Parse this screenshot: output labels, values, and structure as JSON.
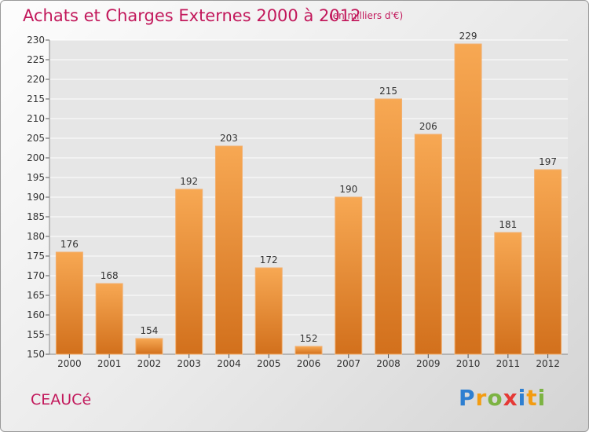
{
  "header": {
    "title": "Achats et Charges Externes 2000 à 2012",
    "unit": "(en milliers d'€)"
  },
  "footer": {
    "commune": "CEAUCé",
    "logo_text": "Proxiti",
    "logo_letters": [
      {
        "ch": "P",
        "color": "#2e7fd1"
      },
      {
        "ch": "r",
        "color": "#f39c12"
      },
      {
        "ch": "o",
        "color": "#7cb342"
      },
      {
        "ch": "x",
        "color": "#e53935"
      },
      {
        "ch": "i",
        "color": "#2e7fd1"
      },
      {
        "ch": "t",
        "color": "#f39c12"
      },
      {
        "ch": "i",
        "color": "#7cb342"
      }
    ]
  },
  "colors": {
    "accent": "#c2185b",
    "bar_light": "#f7a853",
    "bar_dark": "#d4711e",
    "grid": "#ffffff"
  },
  "chart_data": {
    "type": "bar",
    "categories": [
      "2000",
      "2001",
      "2002",
      "2003",
      "2004",
      "2005",
      "2006",
      "2007",
      "2008",
      "2009",
      "2010",
      "2011",
      "2012"
    ],
    "values": [
      176,
      168,
      154,
      192,
      203,
      172,
      152,
      190,
      215,
      206,
      229,
      181,
      197
    ],
    "title": "Achats et Charges Externes 2000 à 2012",
    "ylim": [
      150,
      230
    ],
    "yticks": [
      150,
      155,
      160,
      165,
      170,
      175,
      180,
      185,
      190,
      195,
      200,
      205,
      210,
      215,
      220,
      225,
      230
    ],
    "grid": true
  }
}
